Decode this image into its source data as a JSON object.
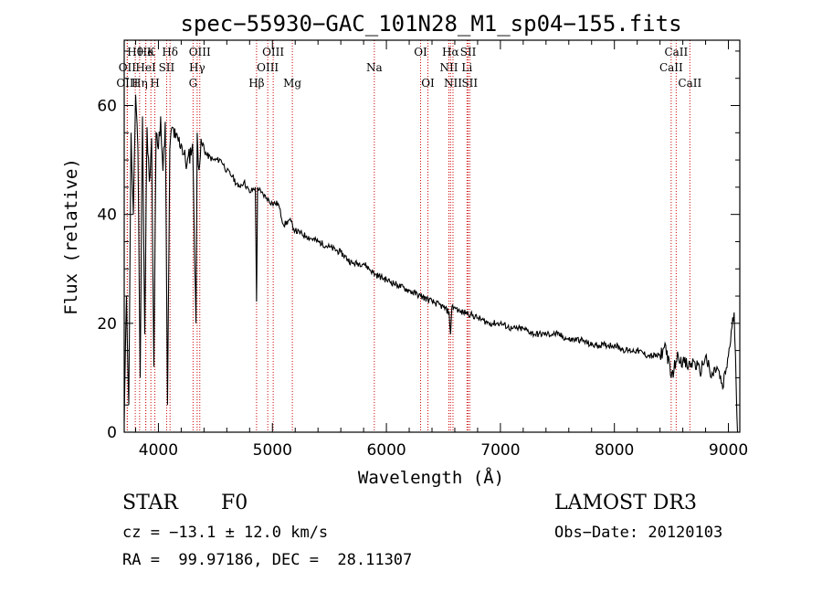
{
  "chart_data": {
    "type": "line",
    "title": "spec−55930−GAC_101N28_M1_sp04−155.fits",
    "xlabel": "Wavelength (Å)",
    "ylabel": "Flux (relative)",
    "xlim": [
      3700,
      9100
    ],
    "ylim": [
      0,
      72
    ],
    "xticks": [
      4000,
      5000,
      6000,
      7000,
      8000,
      9000
    ],
    "yticks": [
      0,
      20,
      40,
      60
    ],
    "grid": false,
    "series": [
      {
        "name": "flux",
        "x": [
          3700,
          3720,
          3740,
          3760,
          3780,
          3800,
          3820,
          3840,
          3860,
          3880,
          3900,
          3920,
          3940,
          3960,
          3980,
          4000,
          4020,
          4040,
          4060,
          4080,
          4100,
          4120,
          4150,
          4200,
          4250,
          4300,
          4330,
          4340,
          4350,
          4380,
          4420,
          4480,
          4550,
          4600,
          4650,
          4700,
          4750,
          4800,
          4850,
          4861,
          4870,
          4900,
          4950,
          5000,
          5050,
          5100,
          5150,
          5200,
          5300,
          5400,
          5500,
          5600,
          5700,
          5800,
          5900,
          6000,
          6100,
          6200,
          6300,
          6400,
          6500,
          6550,
          6563,
          6575,
          6600,
          6650,
          6700,
          6800,
          6900,
          7000,
          7100,
          7200,
          7300,
          7400,
          7500,
          7600,
          7700,
          7800,
          7900,
          8000,
          8100,
          8200,
          8300,
          8400,
          8450,
          8498,
          8540,
          8560,
          8600,
          8650,
          8700,
          8750,
          8800,
          8850,
          8900,
          8950,
          9000,
          9050,
          9080
        ],
        "y": [
          2,
          25,
          5,
          55,
          40,
          62,
          52,
          10,
          58,
          18,
          56,
          46,
          54,
          12,
          55,
          52,
          58,
          48,
          57,
          5,
          52,
          56,
          54,
          53,
          49,
          53,
          20,
          55,
          49,
          53,
          51,
          50,
          50,
          48,
          47,
          45,
          46,
          44,
          45,
          24,
          45,
          44,
          43,
          42,
          42,
          38,
          39,
          37,
          36,
          35,
          34,
          33,
          31,
          31,
          29,
          28,
          27,
          26,
          25,
          24,
          23,
          22,
          18,
          23,
          23,
          22,
          22,
          21,
          20,
          20,
          19,
          19,
          18,
          18,
          18,
          17,
          17,
          16,
          16,
          16,
          15,
          15,
          14,
          14,
          16,
          10,
          13,
          14,
          13,
          12,
          13,
          11,
          14,
          10,
          12,
          8,
          14,
          22,
          0
        ]
      }
    ],
    "annotations": [
      {
        "label": "Hθ",
        "x": 3797,
        "row": 1
      },
      {
        "label": "OII",
        "x": 3727,
        "row": 2
      },
      {
        "label": "OIII",
        "x": 3727,
        "row": 3
      },
      {
        "label": "He",
        "x": 3889,
        "row": 1
      },
      {
        "label": "Hη",
        "x": 3835,
        "row": 3
      },
      {
        "label": "K",
        "x": 3934,
        "row": 1
      },
      {
        "label": "HeI",
        "x": 3889,
        "row": 2
      },
      {
        "label": "H",
        "x": 3969,
        "row": 3
      },
      {
        "label": "SII",
        "x": 4072,
        "row": 2
      },
      {
        "label": "Hδ",
        "x": 4102,
        "row": 1
      },
      {
        "label": "OIII",
        "x": 4363,
        "row": 1
      },
      {
        "label": "Hγ",
        "x": 4340,
        "row": 2
      },
      {
        "label": "G",
        "x": 4304,
        "row": 3
      },
      {
        "label": "Hβ",
        "x": 4861,
        "row": 3
      },
      {
        "label": "OIII",
        "x": 5007,
        "row": 1
      },
      {
        "label": "OIII",
        "x": 4959,
        "row": 2
      },
      {
        "label": "Mg",
        "x": 5175,
        "row": 3
      },
      {
        "label": "Na",
        "x": 5894,
        "row": 2
      },
      {
        "label": "OI",
        "x": 6300,
        "row": 1
      },
      {
        "label": "OI",
        "x": 6364,
        "row": 3
      },
      {
        "label": "Hα",
        "x": 6563,
        "row": 1
      },
      {
        "label": "NII",
        "x": 6548,
        "row": 2
      },
      {
        "label": "NII",
        "x": 6584,
        "row": 3
      },
      {
        "label": "SII",
        "x": 6717,
        "row": 1
      },
      {
        "label": "Li",
        "x": 6707,
        "row": 2
      },
      {
        "label": "SII",
        "x": 6731,
        "row": 3
      },
      {
        "label": "CaII",
        "x": 8542,
        "row": 1
      },
      {
        "label": "CaII",
        "x": 8498,
        "row": 2
      },
      {
        "label": "CaII",
        "x": 8662,
        "row": 3
      }
    ]
  },
  "info": {
    "class": "STAR",
    "subclass": "F0",
    "survey": "LAMOST DR3",
    "cz": "cz = −13.1 ± 12.0 km/s",
    "obs_date": "Obs−Date: 20120103",
    "radec": "RA =  99.97186, DEC =  28.11307"
  }
}
